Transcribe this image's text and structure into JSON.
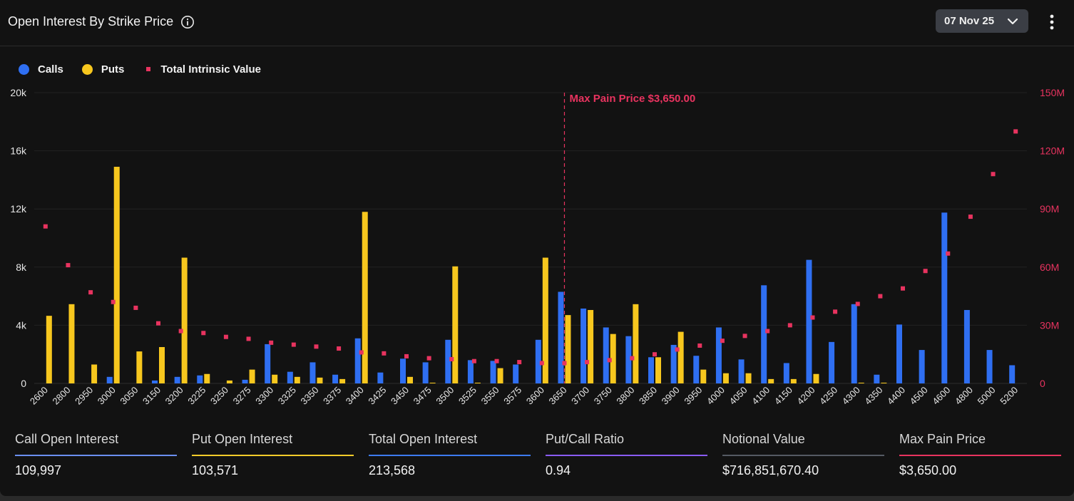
{
  "header": {
    "title": "Open Interest By Strike Price",
    "date_label": "07 Nov 25"
  },
  "legend": {
    "calls": "Calls",
    "puts": "Puts",
    "intrinsic": "Total Intrinsic Value"
  },
  "colors": {
    "calls": "#2f6ff2",
    "puts": "#f7c71e",
    "intrinsic": "#e8335f",
    "ratio": "#8a5cf6",
    "notional": "#555a63",
    "total": "#3d7bf0"
  },
  "chart_data": {
    "type": "bar",
    "title": "Open Interest By Strike Price",
    "categories": [
      "2600",
      "2800",
      "2950",
      "3000",
      "3050",
      "3150",
      "3200",
      "3225",
      "3250",
      "3275",
      "3300",
      "3325",
      "3350",
      "3375",
      "3400",
      "3425",
      "3450",
      "3475",
      "3500",
      "3525",
      "3550",
      "3575",
      "3600",
      "3650",
      "3700",
      "3750",
      "3800",
      "3850",
      "3900",
      "3950",
      "4000",
      "4050",
      "4100",
      "4150",
      "4200",
      "4250",
      "4300",
      "4350",
      "4400",
      "4500",
      "4600",
      "4800",
      "5000",
      "5200"
    ],
    "series": [
      {
        "name": "Calls",
        "axis": "left",
        "values": [
          0,
          0,
          0,
          450,
          0,
          200,
          450,
          550,
          0,
          250,
          2700,
          800,
          1450,
          600,
          3100,
          750,
          1700,
          1450,
          3000,
          1600,
          1550,
          1300,
          3000,
          6300,
          5150,
          3850,
          3250,
          1800,
          2650,
          1900,
          3850,
          1650,
          6750,
          1400,
          8500,
          2850,
          5450,
          600,
          4050,
          2300,
          11750,
          5050,
          2300,
          1250
        ]
      },
      {
        "name": "Puts",
        "axis": "left",
        "values": [
          4650,
          5450,
          1300,
          14900,
          2200,
          2500,
          8650,
          650,
          200,
          950,
          600,
          450,
          400,
          300,
          11800,
          0,
          450,
          50,
          8050,
          50,
          1050,
          0,
          8650,
          4700,
          5050,
          3400,
          5450,
          1800,
          3550,
          950,
          700,
          700,
          300,
          300,
          650,
          0,
          50,
          50,
          0,
          0,
          0,
          0,
          0,
          0
        ]
      },
      {
        "name": "Total Intrinsic Value",
        "axis": "right",
        "type": "scatter",
        "values": [
          81000000,
          61000000,
          47000000,
          42000000,
          39000000,
          31000000,
          27000000,
          26000000,
          24000000,
          23000000,
          21000000,
          20000000,
          19000000,
          18000000,
          16000000,
          15500000,
          14000000,
          13000000,
          12500000,
          11500000,
          11500000,
          11000000,
          10500000,
          10500000,
          11000000,
          12000000,
          13000000,
          15000000,
          17500000,
          19500000,
          22000000,
          24500000,
          27000000,
          30000000,
          34000000,
          37000000,
          41000000,
          45000000,
          49000000,
          58000000,
          67000000,
          86000000,
          108000000,
          130000000
        ]
      }
    ],
    "ylim": [
      0,
      20000
    ],
    "y_ticks": [
      "0",
      "4k",
      "8k",
      "12k",
      "16k",
      "20k"
    ],
    "y2lim": [
      0,
      150000000
    ],
    "y2_ticks": [
      "0",
      "30M",
      "60M",
      "90M",
      "120M",
      "150M"
    ],
    "annotation": {
      "label": "Max Pain Price $3,650.00",
      "category": "3650"
    }
  },
  "stats": [
    {
      "label": "Call Open Interest",
      "value": "109,997",
      "color": "#6b8ff0"
    },
    {
      "label": "Put Open Interest",
      "value": "103,571",
      "color": "#f5cc2a"
    },
    {
      "label": "Total Open Interest",
      "value": "213,568",
      "color": "#3d7bf0"
    },
    {
      "label": "Put/Call Ratio",
      "value": "0.94",
      "color": "#8a5cf6"
    },
    {
      "label": "Notional Value",
      "value": "$716,851,670.40",
      "color": "#555a63"
    },
    {
      "label": "Max Pain Price",
      "value": "$3,650.00",
      "color": "#e8335f"
    }
  ]
}
